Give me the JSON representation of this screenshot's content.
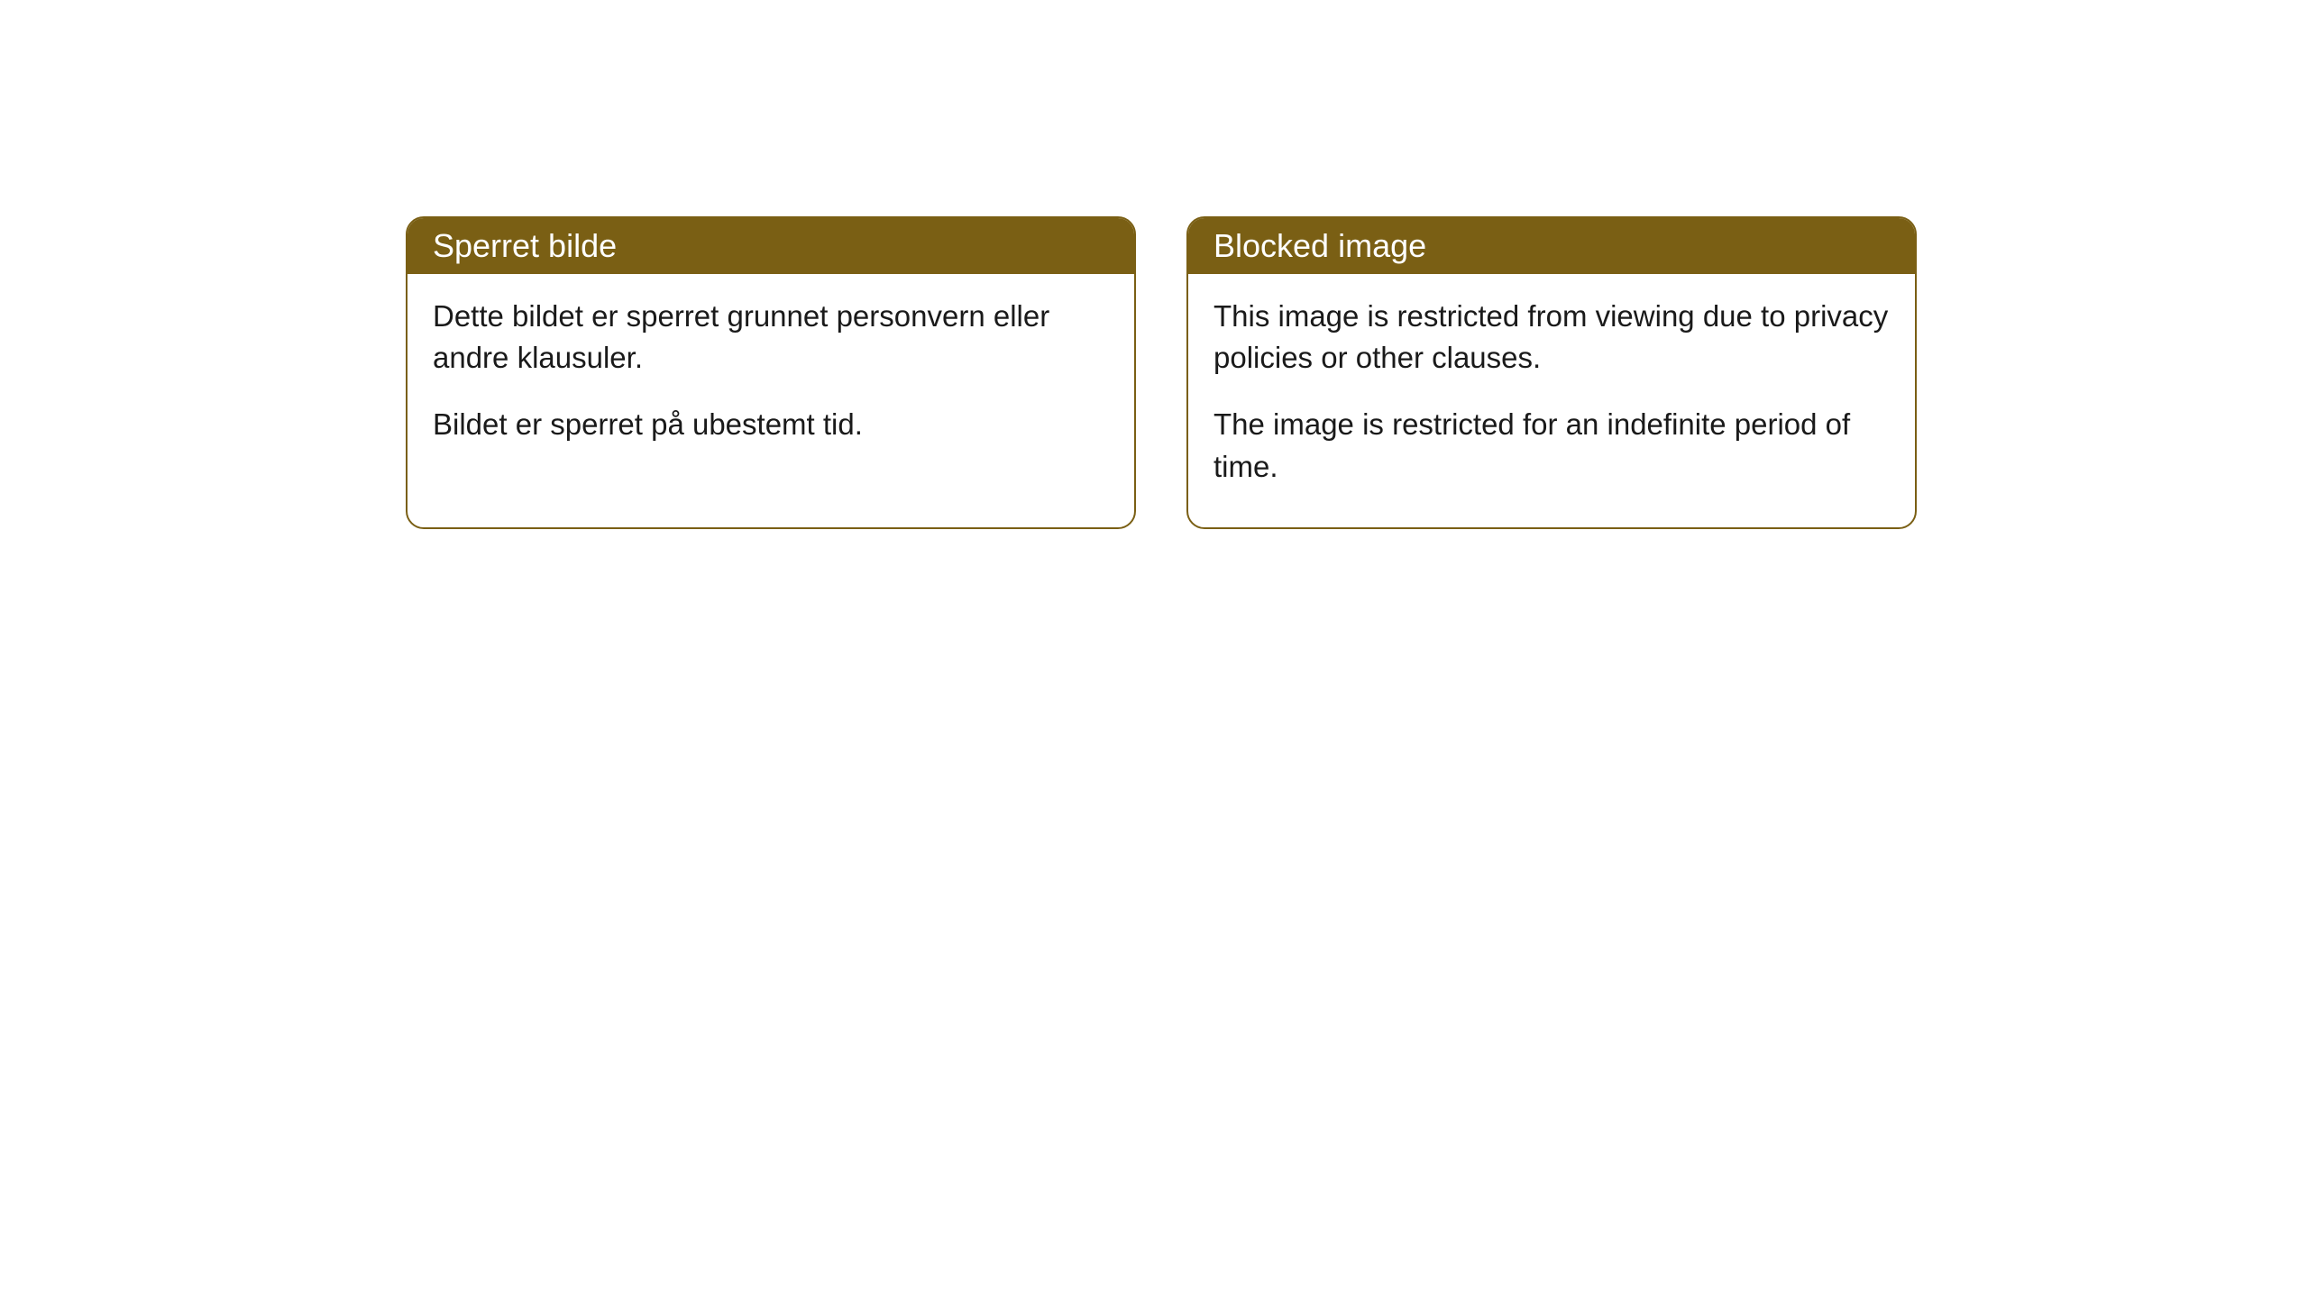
{
  "notices": [
    {
      "title": "Sperret bilde",
      "paragraph1": "Dette bildet er sperret grunnet personvern eller andre klausuler.",
      "paragraph2": "Bildet er sperret på ubestemt tid."
    },
    {
      "title": "Blocked image",
      "paragraph1": "This image is restricted from viewing due to privacy policies or other clauses.",
      "paragraph2": "The image is restricted for an indefinite period of time."
    }
  ],
  "styling": {
    "header_background": "#7a5f14",
    "header_text_color": "#ffffff",
    "border_color": "#7a5f14",
    "body_background": "#ffffff",
    "body_text_color": "#1a1a1a",
    "border_radius": 20,
    "title_fontsize": 36,
    "body_fontsize": 33
  }
}
